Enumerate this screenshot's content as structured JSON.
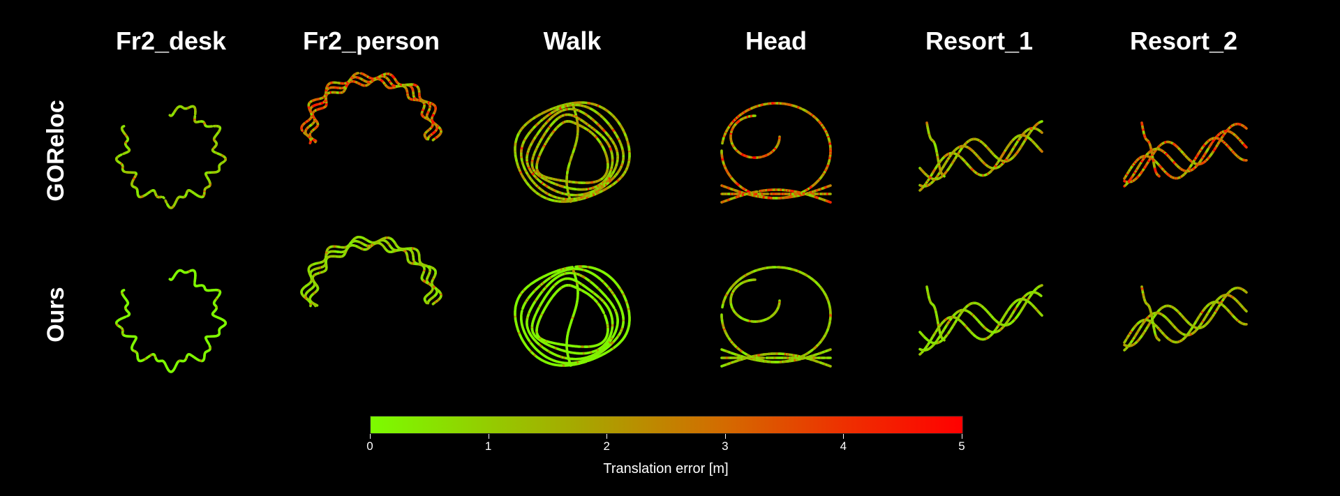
{
  "columns": [
    "Fr2_desk",
    "Fr2_person",
    "Walk",
    "Head",
    "Resort_1",
    "Resort_2"
  ],
  "rows": [
    "GOReloc",
    "Ours"
  ],
  "colorbar": {
    "label": "Translation error [m]",
    "min": 0,
    "max": 5,
    "ticks": [
      "0",
      "1",
      "2",
      "3",
      "4",
      "5"
    ],
    "colors": [
      "#7CFC00",
      "#FF0000"
    ]
  },
  "panels": {
    "GOReloc": {
      "Fr2_desk": {
        "error": 0.9
      },
      "Fr2_person": {
        "error": 2.6
      },
      "Walk": {
        "error": 1.4
      },
      "Head": {
        "error": 2.4
      },
      "Resort_1": {
        "error": 1.6
      },
      "Resort_2": {
        "error": 2.6
      }
    },
    "Ours": {
      "Fr2_desk": {
        "error": 0.1
      },
      "Fr2_person": {
        "error": 0.8
      },
      "Walk": {
        "error": 0.2
      },
      "Head": {
        "error": 1.0
      },
      "Resort_1": {
        "error": 0.8
      },
      "Resort_2": {
        "error": 1.3
      }
    }
  }
}
